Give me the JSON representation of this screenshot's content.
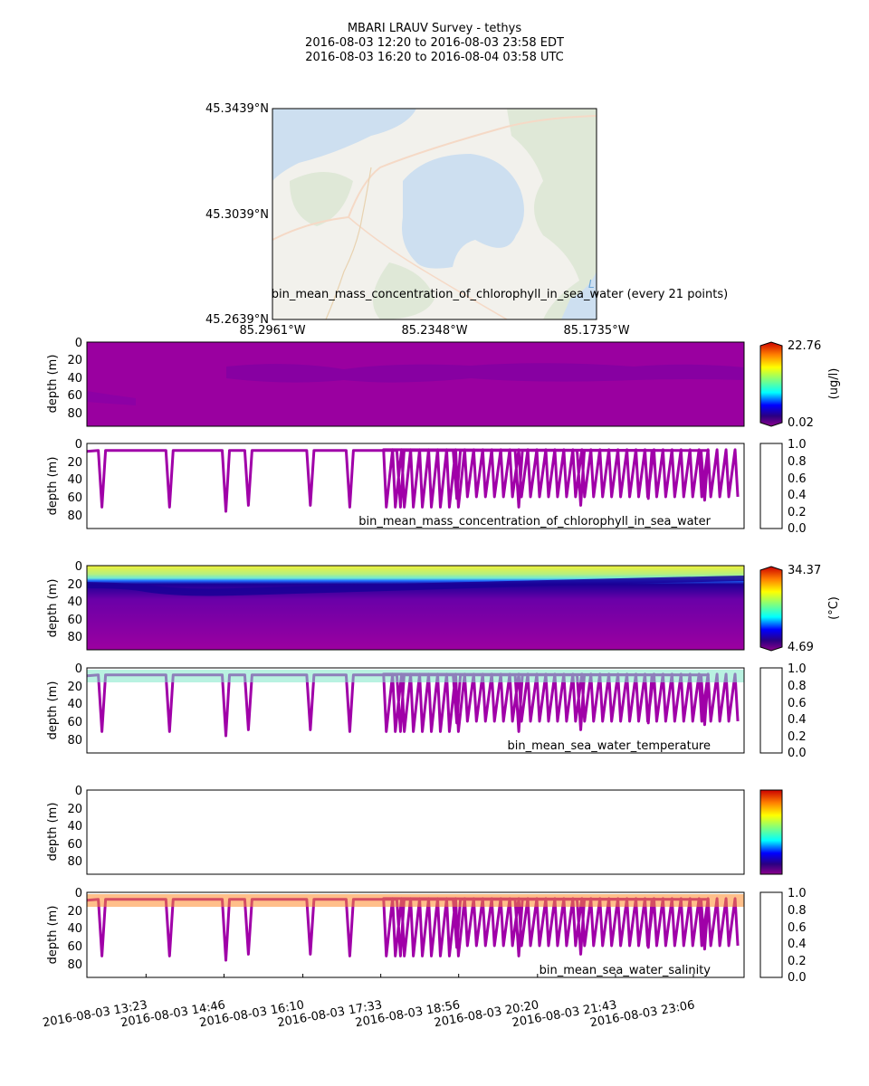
{
  "title": {
    "line1": "MBARI LRAUV Survey - tethys",
    "line2": "2016-08-03 12:20  to  2016-08-03 23:58 EDT",
    "line3": "2016-08-03 16:20  to  2016-08-04 03:58 UTC"
  },
  "map": {
    "lat_labels": [
      "45.3439°N",
      "45.3039°N",
      "45.2639°N"
    ],
    "lon_labels": [
      "85.2961°W",
      "85.2348°W",
      "85.1735°W"
    ],
    "caption": "bin_mean_mass_concentration_of_chlorophyll_in_sea_water (every 21 points)",
    "corner_mark": "L",
    "colors": {
      "water": "#cddff0",
      "land": "#f2f1ec",
      "forest": "#dfe8d7",
      "road": "#f5d9c6",
      "path": "#e8d2b0"
    }
  },
  "chart_data": [
    {
      "id": "chlorophyll",
      "type": "heatmap",
      "variable": "bin_mean_mass_concentration_of_chlorophyll_in_sea_water",
      "ylabel": "depth (m)",
      "ylim": [
        95,
        0
      ],
      "yticks": [
        0,
        20,
        40,
        60,
        80
      ],
      "colorbar": {
        "min": "0.02",
        "max": "22.76",
        "unit": "(ug/l)"
      },
      "profile_colorbar_ticks": [
        "1.0",
        "0.8",
        "0.6",
        "0.4",
        "0.2",
        "0.0"
      ],
      "profile_label": "bin_mean_mass_concentration_of_chlorophyll_in_sea_water"
    },
    {
      "id": "temperature",
      "type": "heatmap",
      "variable": "bin_mean_sea_water_temperature",
      "ylabel": "depth (m)",
      "ylim": [
        95,
        0
      ],
      "yticks": [
        0,
        20,
        40,
        60,
        80
      ],
      "colorbar": {
        "min": "4.69",
        "max": "34.37",
        "unit": "(°C)"
      },
      "profile_colorbar_ticks": [
        "1.0",
        "0.8",
        "0.6",
        "0.4",
        "0.2",
        "0.0"
      ],
      "profile_label": "bin_mean_sea_water_temperature"
    },
    {
      "id": "salinity",
      "type": "heatmap",
      "variable": "bin_mean_sea_water_salinity",
      "ylabel": "depth (m)",
      "ylim": [
        95,
        0
      ],
      "yticks": [
        0,
        20,
        40,
        60,
        80
      ],
      "colorbar": {
        "min": "",
        "max": "",
        "unit": ""
      },
      "profile_colorbar_ticks": [
        "1.0",
        "0.8",
        "0.6",
        "0.4",
        "0.2",
        "0.0"
      ],
      "profile_label": "bin_mean_sea_water_salinity"
    }
  ],
  "time_axis": {
    "start_hours": 12.333,
    "end_hours": 24.0,
    "ticks": [
      {
        "hours": 13.383,
        "label": "2016-08-03 13:23"
      },
      {
        "hours": 14.767,
        "label": "2016-08-03 14:46"
      },
      {
        "hours": 16.167,
        "label": "2016-08-03 16:10"
      },
      {
        "hours": 17.55,
        "label": "2016-08-03 17:33"
      },
      {
        "hours": 18.933,
        "label": "2016-08-03 18:56"
      },
      {
        "hours": 20.333,
        "label": "2016-08-03 20:20"
      },
      {
        "hours": 21.717,
        "label": "2016-08-03 21:43"
      },
      {
        "hours": 23.1,
        "label": "2016-08-03 23:06"
      }
    ]
  },
  "dives": [
    {
      "hours": 12.6,
      "depth": 70
    },
    {
      "hours": 13.8,
      "depth": 70
    },
    {
      "hours": 14.8,
      "depth": 75
    },
    {
      "hours": 15.2,
      "depth": 68
    },
    {
      "hours": 16.3,
      "depth": 68
    },
    {
      "hours": 17.0,
      "depth": 70
    },
    {
      "hours": 17.9,
      "depth": 70
    },
    {
      "hours": 18.9,
      "depth": 60
    },
    {
      "hours": 20.0,
      "depth": 70
    },
    {
      "hours": 21.1,
      "depth": 68
    },
    {
      "hours": 22.3,
      "depth": 60
    },
    {
      "hours": 23.3,
      "depth": 62
    }
  ]
}
